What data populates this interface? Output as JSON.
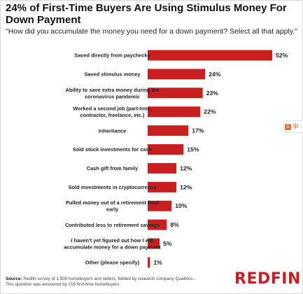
{
  "title": "24% of First-Time Buyers Are Using Stimulus Money For Down Payment",
  "subtitle": "\"How did you accumulate the money you need for a down payment? Select all that apply.\"",
  "colors": {
    "bar": "#c82021",
    "brand": "#c82021"
  },
  "ime_widget": {
    "logo": "S",
    "text": "中 ·"
  },
  "footer": {
    "source_label": "Source:",
    "source_text": "Redfin survey of 1,500 homebuyers and sellers, fielded by research company Qualtrics...",
    "note": "This question was answered by 215 first-time homebuyers."
  },
  "logo_text": "REDFIN",
  "chart_data": {
    "type": "bar",
    "orientation": "horizontal",
    "title": "24% of First-Time Buyers Are Using Stimulus Money For Down Payment",
    "categories": [
      "Saved directly from paychecks",
      "Saved stimulus money",
      "Ability to save extra money during the coronavirus pandemic",
      "Worked a second job (part-time, contractor, freelance, etc.)",
      "Inheritance",
      "Sold stock investments for cash",
      "Cash gift from family",
      "Sold investments in cryptocurrency",
      "Pulled money out of a retirement fund early",
      "Contributed less to retirement savings",
      "I haven't yet figured out how I will accumulate money for a down payment",
      "Other (please specify)"
    ],
    "values": [
      52,
      24,
      23,
      22,
      17,
      15,
      12,
      12,
      10,
      8,
      5,
      1
    ],
    "value_labels": [
      "52%",
      "24%",
      "23%",
      "22%",
      "17%",
      "15%",
      "12%",
      "12%",
      "10%",
      "8%",
      "5%",
      "1%"
    ],
    "xlim": [
      0,
      55
    ],
    "grid": false,
    "legend": "none"
  }
}
